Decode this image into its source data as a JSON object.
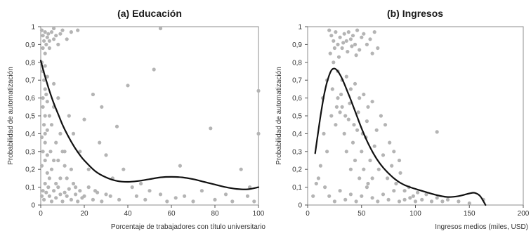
{
  "chart_data": [
    {
      "type": "scatter",
      "title": "(a) Educación",
      "xlabel": "Porcentaje de trabajadores con título universitario",
      "ylabel": "Probabilidad de automatización",
      "xlim": [
        0,
        100
      ],
      "ylim": [
        0,
        1
      ],
      "x_ticks": [
        0,
        20,
        40,
        60,
        80,
        100
      ],
      "x_tick_labels": [
        "0",
        "20",
        "40",
        "60",
        "80",
        "100"
      ],
      "y_ticks": [
        0,
        0.1,
        0.2,
        0.3,
        0.4,
        0.5,
        0.6,
        0.7,
        0.8,
        0.9,
        1
      ],
      "y_tick_labels": [
        "0",
        "0,1",
        "0,2",
        "0,3",
        "0,4",
        "0,5",
        "0,6",
        "0,7",
        "0,8",
        "0,9",
        "1"
      ],
      "grid": false,
      "point_color": "#b4b4b4",
      "curve_color": "#111111",
      "points": [
        [
          0.5,
          0.98
        ],
        [
          1,
          0.95
        ],
        [
          1.5,
          0.92
        ],
        [
          2,
          0.97
        ],
        [
          2.5,
          0.9
        ],
        [
          3,
          0.94
        ],
        [
          1,
          0.88
        ],
        [
          2,
          0.85
        ],
        [
          3.5,
          0.96
        ],
        [
          4,
          0.92
        ],
        [
          5,
          0.97
        ],
        [
          6,
          0.93
        ],
        [
          7,
          0.95
        ],
        [
          8,
          0.9
        ],
        [
          9,
          0.96
        ],
        [
          10,
          0.98
        ],
        [
          4,
          0.88
        ],
        [
          6,
          0.99
        ],
        [
          12,
          0.93
        ],
        [
          14,
          0.97
        ],
        [
          0.5,
          0.8
        ],
        [
          1,
          0.75
        ],
        [
          1.5,
          0.7
        ],
        [
          2,
          0.65
        ],
        [
          2.5,
          0.62
        ],
        [
          3,
          0.58
        ],
        [
          1,
          0.55
        ],
        [
          2,
          0.5
        ],
        [
          1.5,
          0.45
        ],
        [
          3,
          0.42
        ],
        [
          0.5,
          0.38
        ],
        [
          2,
          0.35
        ],
        [
          1,
          0.3
        ],
        [
          3,
          0.28
        ],
        [
          2,
          0.25
        ],
        [
          4,
          0.5
        ],
        [
          5,
          0.45
        ],
        [
          6,
          0.55
        ],
        [
          4.5,
          0.3
        ],
        [
          7,
          0.35
        ],
        [
          5,
          0.2
        ],
        [
          8,
          0.25
        ],
        [
          9,
          0.4
        ],
        [
          10,
          0.3
        ],
        [
          11,
          0.22
        ],
        [
          12,
          0.15
        ],
        [
          13,
          0.5
        ],
        [
          3,
          0.18
        ],
        [
          2,
          0.12
        ],
        [
          1,
          0.08
        ],
        [
          0.5,
          0.05
        ],
        [
          1.5,
          0.03
        ],
        [
          2.5,
          0.07
        ],
        [
          3.5,
          0.1
        ],
        [
          4,
          0.05
        ],
        [
          5,
          0.02
        ],
        [
          6,
          0.08
        ],
        [
          7,
          0.04
        ],
        [
          8,
          0.1
        ],
        [
          9,
          0.06
        ],
        [
          10,
          0.02
        ],
        [
          11,
          0.07
        ],
        [
          12,
          0.05
        ],
        [
          13,
          0.09
        ],
        [
          14,
          0.03
        ],
        [
          15,
          0.12
        ],
        [
          16,
          0.06
        ],
        [
          17,
          0.02
        ],
        [
          18,
          0.08
        ],
        [
          19,
          0.04
        ],
        [
          20,
          0.05
        ],
        [
          22,
          0.1
        ],
        [
          24,
          0.03
        ],
        [
          26,
          0.07
        ],
        [
          28,
          0.02
        ],
        [
          30,
          0.06
        ],
        [
          15,
          0.4
        ],
        [
          18,
          0.3
        ],
        [
          20,
          0.48
        ],
        [
          22,
          0.2
        ],
        [
          24,
          0.62
        ],
        [
          27,
          0.35
        ],
        [
          30,
          0.28
        ],
        [
          33,
          0.15
        ],
        [
          35,
          0.44
        ],
        [
          38,
          0.2
        ],
        [
          40,
          0.67
        ],
        [
          42,
          0.1
        ],
        [
          44,
          0.05
        ],
        [
          46,
          0.12
        ],
        [
          48,
          0.03
        ],
        [
          50,
          0.08
        ],
        [
          52,
          0.76
        ],
        [
          55,
          0.06
        ],
        [
          58,
          0.02
        ],
        [
          62,
          0.04
        ],
        [
          64,
          0.22
        ],
        [
          66,
          0.05
        ],
        [
          70,
          0.02
        ],
        [
          74,
          0.08
        ],
        [
          78,
          0.43
        ],
        [
          80,
          0.03
        ],
        [
          85,
          0.06
        ],
        [
          88,
          0.02
        ],
        [
          92,
          0.2
        ],
        [
          95,
          0.05
        ],
        [
          98,
          0.02
        ],
        [
          100,
          0.64
        ],
        [
          100,
          0.4
        ],
        [
          96,
          0.1
        ],
        [
          36,
          0.03
        ],
        [
          32,
          0.05
        ],
        [
          28,
          0.55
        ],
        [
          25,
          0.08
        ],
        [
          6,
          0.68
        ],
        [
          8,
          0.6
        ],
        [
          3,
          0.72
        ],
        [
          2,
          0.78
        ],
        [
          17,
          0.98
        ],
        [
          55,
          0.99
        ],
        [
          1,
          0.6
        ],
        [
          2,
          0.4
        ],
        [
          0.5,
          0.22
        ],
        [
          4,
          0.15
        ],
        [
          6,
          0.25
        ],
        [
          7,
          0.12
        ],
        [
          9,
          0.15
        ],
        [
          11,
          0.3
        ],
        [
          14,
          0.2
        ],
        [
          16,
          0.1
        ]
      ],
      "fit_curve": {
        "x": [
          0,
          2,
          4,
          6,
          8,
          10,
          12,
          14,
          16,
          18,
          20,
          25,
          30,
          35,
          40,
          45,
          50,
          55,
          60,
          65,
          70,
          75,
          80,
          85,
          90,
          95,
          100
        ],
        "y": [
          0.81,
          0.72,
          0.64,
          0.57,
          0.51,
          0.45,
          0.4,
          0.355,
          0.315,
          0.28,
          0.25,
          0.19,
          0.155,
          0.135,
          0.13,
          0.135,
          0.145,
          0.155,
          0.158,
          0.155,
          0.145,
          0.13,
          0.115,
          0.1,
          0.09,
          0.088,
          0.1
        ]
      }
    },
    {
      "type": "scatter",
      "title": "(b) Ingresos",
      "xlabel": "Ingresos medios (miles, USD)",
      "ylabel": "Probabilidad de automatización",
      "xlim": [
        0,
        200
      ],
      "ylim": [
        0,
        1
      ],
      "x_ticks": [
        0,
        50,
        100,
        150,
        200
      ],
      "x_tick_labels": [
        "0",
        "50",
        "100",
        "150",
        "200"
      ],
      "y_ticks": [
        0,
        0.1,
        0.2,
        0.3,
        0.4,
        0.5,
        0.6,
        0.7,
        0.8,
        0.9,
        1
      ],
      "y_tick_labels": [
        "0",
        "0,1",
        "0,2",
        "0,3",
        "0,4",
        "0,5",
        "0,6",
        "0,7",
        "0,8",
        "0,9",
        "1"
      ],
      "grid": false,
      "point_color": "#b4b4b4",
      "curve_color": "#111111",
      "points": [
        [
          20,
          0.98
        ],
        [
          22,
          0.95
        ],
        [
          24,
          0.92
        ],
        [
          26,
          0.97
        ],
        [
          28,
          0.9
        ],
        [
          30,
          0.94
        ],
        [
          32,
          0.88
        ],
        [
          34,
          0.96
        ],
        [
          36,
          0.92
        ],
        [
          38,
          0.97
        ],
        [
          40,
          0.93
        ],
        [
          42,
          0.95
        ],
        [
          44,
          0.9
        ],
        [
          46,
          0.98
        ],
        [
          48,
          0.87
        ],
        [
          50,
          0.94
        ],
        [
          21,
          0.85
        ],
        [
          25,
          0.88
        ],
        [
          29,
          0.83
        ],
        [
          33,
          0.91
        ],
        [
          37,
          0.86
        ],
        [
          41,
          0.89
        ],
        [
          45,
          0.84
        ],
        [
          52,
          0.96
        ],
        [
          55,
          0.9
        ],
        [
          58,
          0.93
        ],
        [
          60,
          0.85
        ],
        [
          62,
          0.97
        ],
        [
          65,
          0.88
        ],
        [
          24,
          0.8
        ],
        [
          28,
          0.75
        ],
        [
          32,
          0.7
        ],
        [
          36,
          0.72
        ],
        [
          40,
          0.65
        ],
        [
          44,
          0.68
        ],
        [
          48,
          0.6
        ],
        [
          52,
          0.62
        ],
        [
          56,
          0.55
        ],
        [
          60,
          0.58
        ],
        [
          22,
          0.5
        ],
        [
          26,
          0.45
        ],
        [
          30,
          0.52
        ],
        [
          34,
          0.4
        ],
        [
          38,
          0.48
        ],
        [
          42,
          0.35
        ],
        [
          46,
          0.42
        ],
        [
          50,
          0.3
        ],
        [
          54,
          0.38
        ],
        [
          58,
          0.25
        ],
        [
          62,
          0.33
        ],
        [
          66,
          0.2
        ],
        [
          70,
          0.28
        ],
        [
          74,
          0.15
        ],
        [
          78,
          0.22
        ],
        [
          82,
          0.12
        ],
        [
          86,
          0.18
        ],
        [
          90,
          0.08
        ],
        [
          94,
          0.1
        ],
        [
          98,
          0.05
        ],
        [
          102,
          0.07
        ],
        [
          106,
          0.03
        ],
        [
          110,
          0.06
        ],
        [
          115,
          0.02
        ],
        [
          120,
          0.04
        ],
        [
          125,
          0.02
        ],
        [
          130,
          0.03
        ],
        [
          15,
          0.4
        ],
        [
          18,
          0.3
        ],
        [
          12,
          0.22
        ],
        [
          10,
          0.15
        ],
        [
          16,
          0.1
        ],
        [
          20,
          0.05
        ],
        [
          25,
          0.02
        ],
        [
          30,
          0.08
        ],
        [
          35,
          0.03
        ],
        [
          40,
          0.06
        ],
        [
          45,
          0.02
        ],
        [
          50,
          0.05
        ],
        [
          55,
          0.1
        ],
        [
          60,
          0.04
        ],
        [
          65,
          0.02
        ],
        [
          70,
          0.06
        ],
        [
          75,
          0.03
        ],
        [
          80,
          0.08
        ],
        [
          85,
          0.02
        ],
        [
          90,
          0.03
        ],
        [
          95,
          0.04
        ],
        [
          100,
          0.02
        ],
        [
          140,
          0.02
        ],
        [
          150,
          0.01
        ],
        [
          163,
          0.03
        ],
        [
          120,
          0.41
        ],
        [
          68,
          0.5
        ],
        [
          72,
          0.45
        ],
        [
          76,
          0.35
        ],
        [
          64,
          0.42
        ],
        [
          80,
          0.3
        ],
        [
          85,
          0.25
        ],
        [
          28,
          0.6
        ],
        [
          32,
          0.55
        ],
        [
          36,
          0.3
        ],
        [
          40,
          0.2
        ],
        [
          44,
          0.25
        ],
        [
          48,
          0.15
        ],
        [
          52,
          0.2
        ],
        [
          56,
          0.12
        ],
        [
          60,
          0.15
        ],
        [
          8,
          0.12
        ],
        [
          5,
          0.05
        ],
        [
          14,
          0.6
        ],
        [
          18,
          0.7
        ],
        [
          23,
          0.65
        ],
        [
          27,
          0.55
        ],
        [
          31,
          0.62
        ],
        [
          35,
          0.5
        ],
        [
          39,
          0.57
        ],
        [
          43,
          0.45
        ],
        [
          47,
          0.52
        ],
        [
          51,
          0.4
        ],
        [
          55,
          0.47
        ]
      ],
      "fit_curve": {
        "x": [
          7,
          10,
          13,
          16,
          19,
          22,
          25,
          28,
          31,
          34,
          37,
          40,
          45,
          50,
          55,
          60,
          65,
          70,
          75,
          80,
          85,
          90,
          95,
          100,
          110,
          120,
          130,
          140,
          150,
          155,
          160,
          165
        ],
        "y": [
          0.29,
          0.42,
          0.54,
          0.64,
          0.71,
          0.755,
          0.765,
          0.75,
          0.72,
          0.68,
          0.635,
          0.59,
          0.51,
          0.43,
          0.36,
          0.3,
          0.25,
          0.21,
          0.178,
          0.15,
          0.128,
          0.112,
          0.1,
          0.09,
          0.072,
          0.055,
          0.045,
          0.05,
          0.065,
          0.068,
          0.05,
          0.0
        ]
      }
    }
  ]
}
